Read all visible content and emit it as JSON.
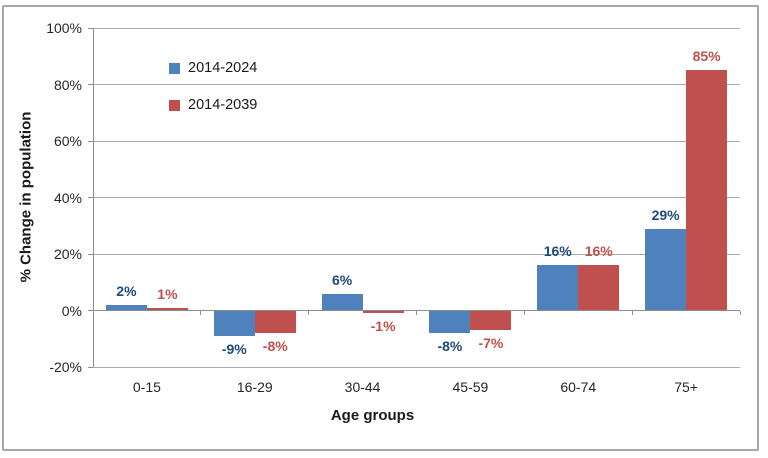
{
  "chart_data": {
    "type": "bar",
    "title": "",
    "xlabel": "Age groups",
    "ylabel": "% Change in population",
    "categories": [
      "0-15",
      "16-29",
      "30-44",
      "45-59",
      "60-74",
      "75+"
    ],
    "series": [
      {
        "name": "2014-2024",
        "color": "#4F81BD",
        "label_color": "#1F497D",
        "values": [
          2,
          -9,
          6,
          -8,
          16,
          29
        ],
        "labels": [
          "2%",
          "-9%",
          "6%",
          "-8%",
          "16%",
          "29%"
        ]
      },
      {
        "name": "2014-2039",
        "color": "#C0504D",
        "label_color": "#C0504D",
        "values": [
          1,
          -8,
          -1,
          -7,
          16,
          85
        ],
        "labels": [
          "1%",
          "-8%",
          "-1%",
          "-7%",
          "16%",
          "85%"
        ]
      }
    ],
    "ylim": [
      -20,
      100
    ],
    "yticks": [
      {
        "label": "100%",
        "value": 100
      },
      {
        "label": "80%",
        "value": 80
      },
      {
        "label": "60%",
        "value": 60
      },
      {
        "label": "40%",
        "value": 40
      },
      {
        "label": "20%",
        "value": 20
      },
      {
        "label": "0%",
        "value": 0
      },
      {
        "label": "-20%",
        "value": -20
      }
    ],
    "grid": true,
    "legend_position": "top-left-inside",
    "colors": {
      "axis": "#8C8C8C",
      "gridline": "#ABABAB",
      "frame_border": "#A6A6A6",
      "text": "#262626"
    }
  }
}
